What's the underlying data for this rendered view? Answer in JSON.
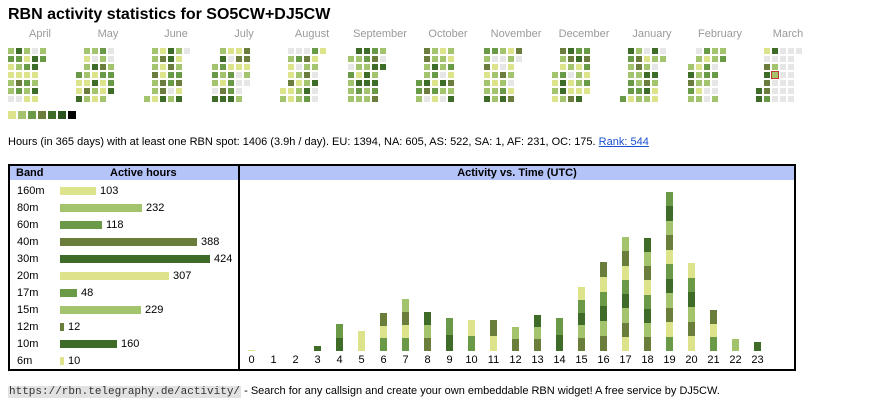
{
  "title": "RBN activity statistics for SO5CW+DJ5CW",
  "months": [
    "April",
    "May",
    "June",
    "July",
    "August",
    "September",
    "October",
    "November",
    "December",
    "January",
    "February",
    "March"
  ],
  "palette": [
    "#dde38a",
    "#a3c46c",
    "#6a9a47",
    "#6b7d3a",
    "#3f6b28",
    "#2c5320",
    "#000000"
  ],
  "summary": {
    "text": "Hours (in 365 days) with at least one RBN spot: 1406 (3.9h / day). EU: 1394, NA: 605, AS: 522, SA: 1, AF: 231, OC: 175.",
    "rank": "Rank: 544"
  },
  "band_table": {
    "header_band": "Band",
    "header_hours": "Active hours",
    "max": 424,
    "rows": [
      {
        "band": "160m",
        "hours": 103,
        "color": "#dde38a"
      },
      {
        "band": "80m",
        "hours": 232,
        "color": "#a3c46c"
      },
      {
        "band": "60m",
        "hours": 118,
        "color": "#6a9a47"
      },
      {
        "band": "40m",
        "hours": 388,
        "color": "#6b7d3a"
      },
      {
        "band": "30m",
        "hours": 424,
        "color": "#3f6b28"
      },
      {
        "band": "20m",
        "hours": 307,
        "color": "#dde38a"
      },
      {
        "band": "17m",
        "hours": 48,
        "color": "#6a9a47"
      },
      {
        "band": "15m",
        "hours": 229,
        "color": "#a3c46c"
      },
      {
        "band": "12m",
        "hours": 12,
        "color": "#6b7d3a"
      },
      {
        "band": "10m",
        "hours": 160,
        "color": "#3f6b28"
      },
      {
        "band": "6m",
        "hours": 10,
        "color": "#dde38a"
      }
    ]
  },
  "chart_data": {
    "type": "bar",
    "title": "Activity vs. Time (UTC)",
    "categories": [
      "0",
      "1",
      "2",
      "3",
      "4",
      "5",
      "6",
      "7",
      "8",
      "9",
      "10",
      "11",
      "12",
      "13",
      "14",
      "15",
      "16",
      "17",
      "18",
      "19",
      "20",
      "21",
      "22",
      "23"
    ],
    "values": [
      1,
      0,
      0,
      6,
      30,
      23,
      43,
      59,
      44,
      37,
      35,
      35,
      27,
      40,
      37,
      72,
      100,
      128,
      127,
      179,
      99,
      46,
      13,
      10
    ],
    "ylim": [
      0,
      180
    ]
  },
  "footer": {
    "url": "https://rbn.telegraphy.de/activity/",
    "text": " - Search for any callsign and create your own embeddable RBN widget! A free service by DJ5CW."
  }
}
